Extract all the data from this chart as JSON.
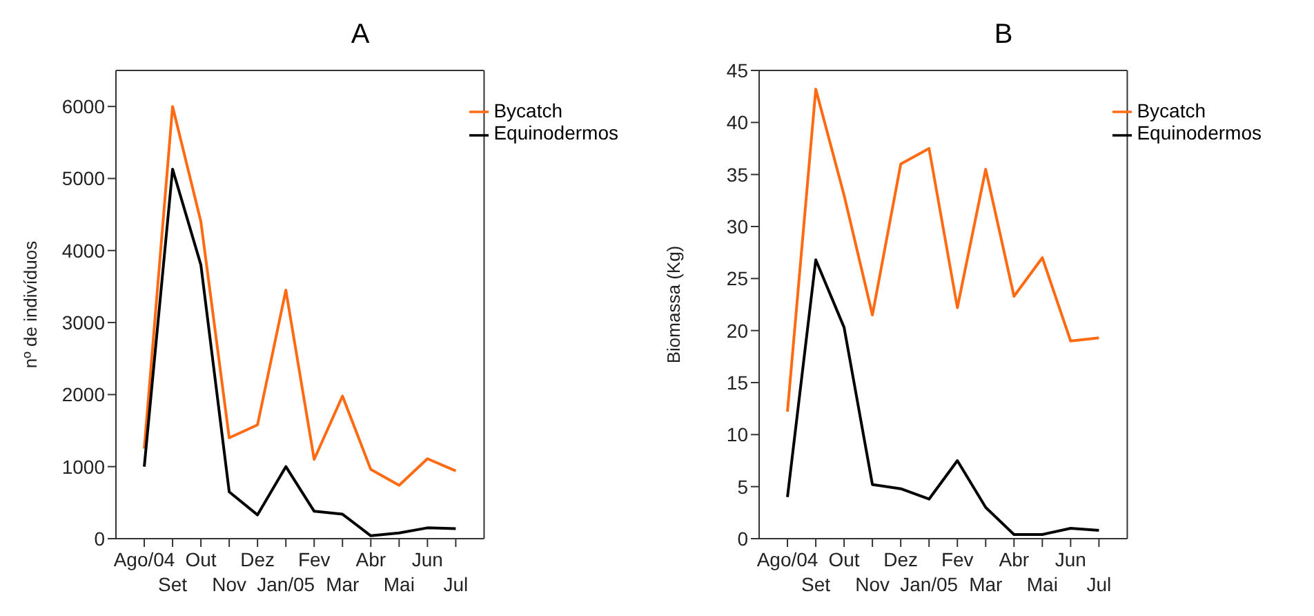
{
  "chart_data": [
    {
      "type": "line",
      "title": "A",
      "ylabel": "nº de indivíduos",
      "categories": [
        "Ago/04",
        "Set",
        "Out",
        "Nov",
        "Dez",
        "Jan/05",
        "Fev",
        "Mar",
        "Abr",
        "Mai",
        "Jun",
        "Jul"
      ],
      "ylim": [
        0,
        6500
      ],
      "yticks": [
        0,
        1000,
        2000,
        3000,
        4000,
        5000,
        6000
      ],
      "grid": false,
      "legend": "top right",
      "marker": "none",
      "line_style": "solid",
      "series": [
        {
          "name": "Bycatch",
          "color": "#ff6a13",
          "values": [
            1250,
            6000,
            4400,
            1400,
            1580,
            3450,
            1100,
            1980,
            960,
            740,
            1110,
            940
          ]
        },
        {
          "name": "Equinodermos",
          "color": "#000000",
          "values": [
            1000,
            5130,
            3800,
            650,
            330,
            1000,
            380,
            340,
            40,
            80,
            150,
            140
          ]
        }
      ]
    },
    {
      "type": "line",
      "title": "B",
      "ylabel": "Biomassa (Kg)",
      "categories": [
        "Ago/04",
        "Set",
        "Out",
        "Nov",
        "Dez",
        "Jan/05",
        "Fev",
        "Mar",
        "Abr",
        "Mai",
        "Jun",
        "Jul"
      ],
      "ylim": [
        0,
        45
      ],
      "yticks": [
        0,
        5,
        10,
        15,
        20,
        25,
        30,
        35,
        40,
        45
      ],
      "grid": false,
      "legend": "top right",
      "marker": "none",
      "line_style": "solid",
      "series": [
        {
          "name": "Bycatch",
          "color": "#ff6a13",
          "values": [
            12.2,
            43.2,
            33,
            21.5,
            36,
            37.5,
            22.2,
            35.5,
            23.3,
            27,
            19,
            19.3
          ]
        },
        {
          "name": "Equinodermos",
          "color": "#000000",
          "values": [
            4,
            26.8,
            20.3,
            5.2,
            4.8,
            3.8,
            7.5,
            3,
            0.4,
            0.4,
            1,
            0.8
          ]
        }
      ]
    }
  ]
}
